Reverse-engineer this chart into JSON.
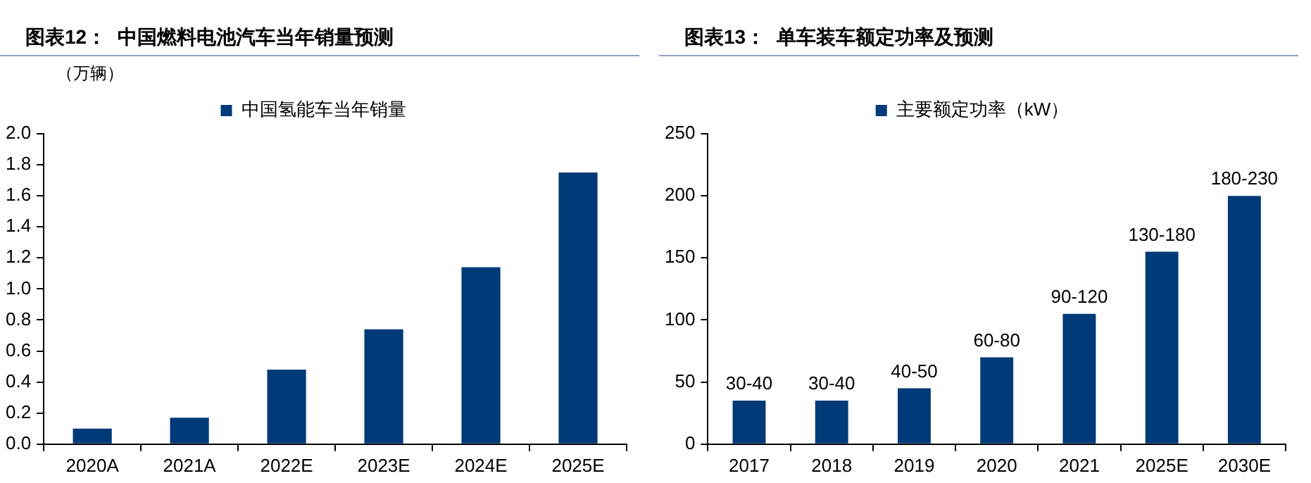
{
  "chart_data": [
    {
      "type": "bar",
      "title": "图表12：  中国燃料电池汽车当年销量预测",
      "ylabel": "（万辆）",
      "categories": [
        "2020A",
        "2021A",
        "2022E",
        "2023E",
        "2024E",
        "2025E"
      ],
      "series": [
        {
          "name": "中国氢能车当年销量",
          "color": "#003a78",
          "values": [
            0.1,
            0.17,
            0.48,
            0.74,
            1.14,
            1.75
          ]
        }
      ],
      "ylim": [
        0,
        2
      ],
      "yticks": [
        {
          "value": 0,
          "label": "0.0"
        },
        0.2,
        0.4,
        0.6,
        0.8,
        {
          "value": 1,
          "label": "1.0"
        },
        1.2,
        1.4,
        1.6,
        1.8,
        {
          "value": 2,
          "label": "2.0"
        }
      ],
      "grid": false,
      "legend": "top"
    },
    {
      "type": "bar",
      "title": "图表13：  单车装车额定功率及预测",
      "categories": [
        "2017",
        "2018",
        "2019",
        "2020",
        "2021",
        "2025E",
        "2030E"
      ],
      "series": [
        {
          "name": "主要额定功率（kW）",
          "color": "#003a78",
          "values": [
            35,
            35,
            45,
            70,
            105,
            155,
            200
          ],
          "value_labels": [
            "30-40",
            "30-40",
            "40-50",
            "60-80",
            "90-120",
            "130-180",
            "180-230"
          ]
        }
      ],
      "ylim": [
        0,
        250
      ],
      "yticks": [
        0,
        50,
        100,
        150,
        200,
        250
      ],
      "grid": false,
      "legend": "top"
    }
  ]
}
